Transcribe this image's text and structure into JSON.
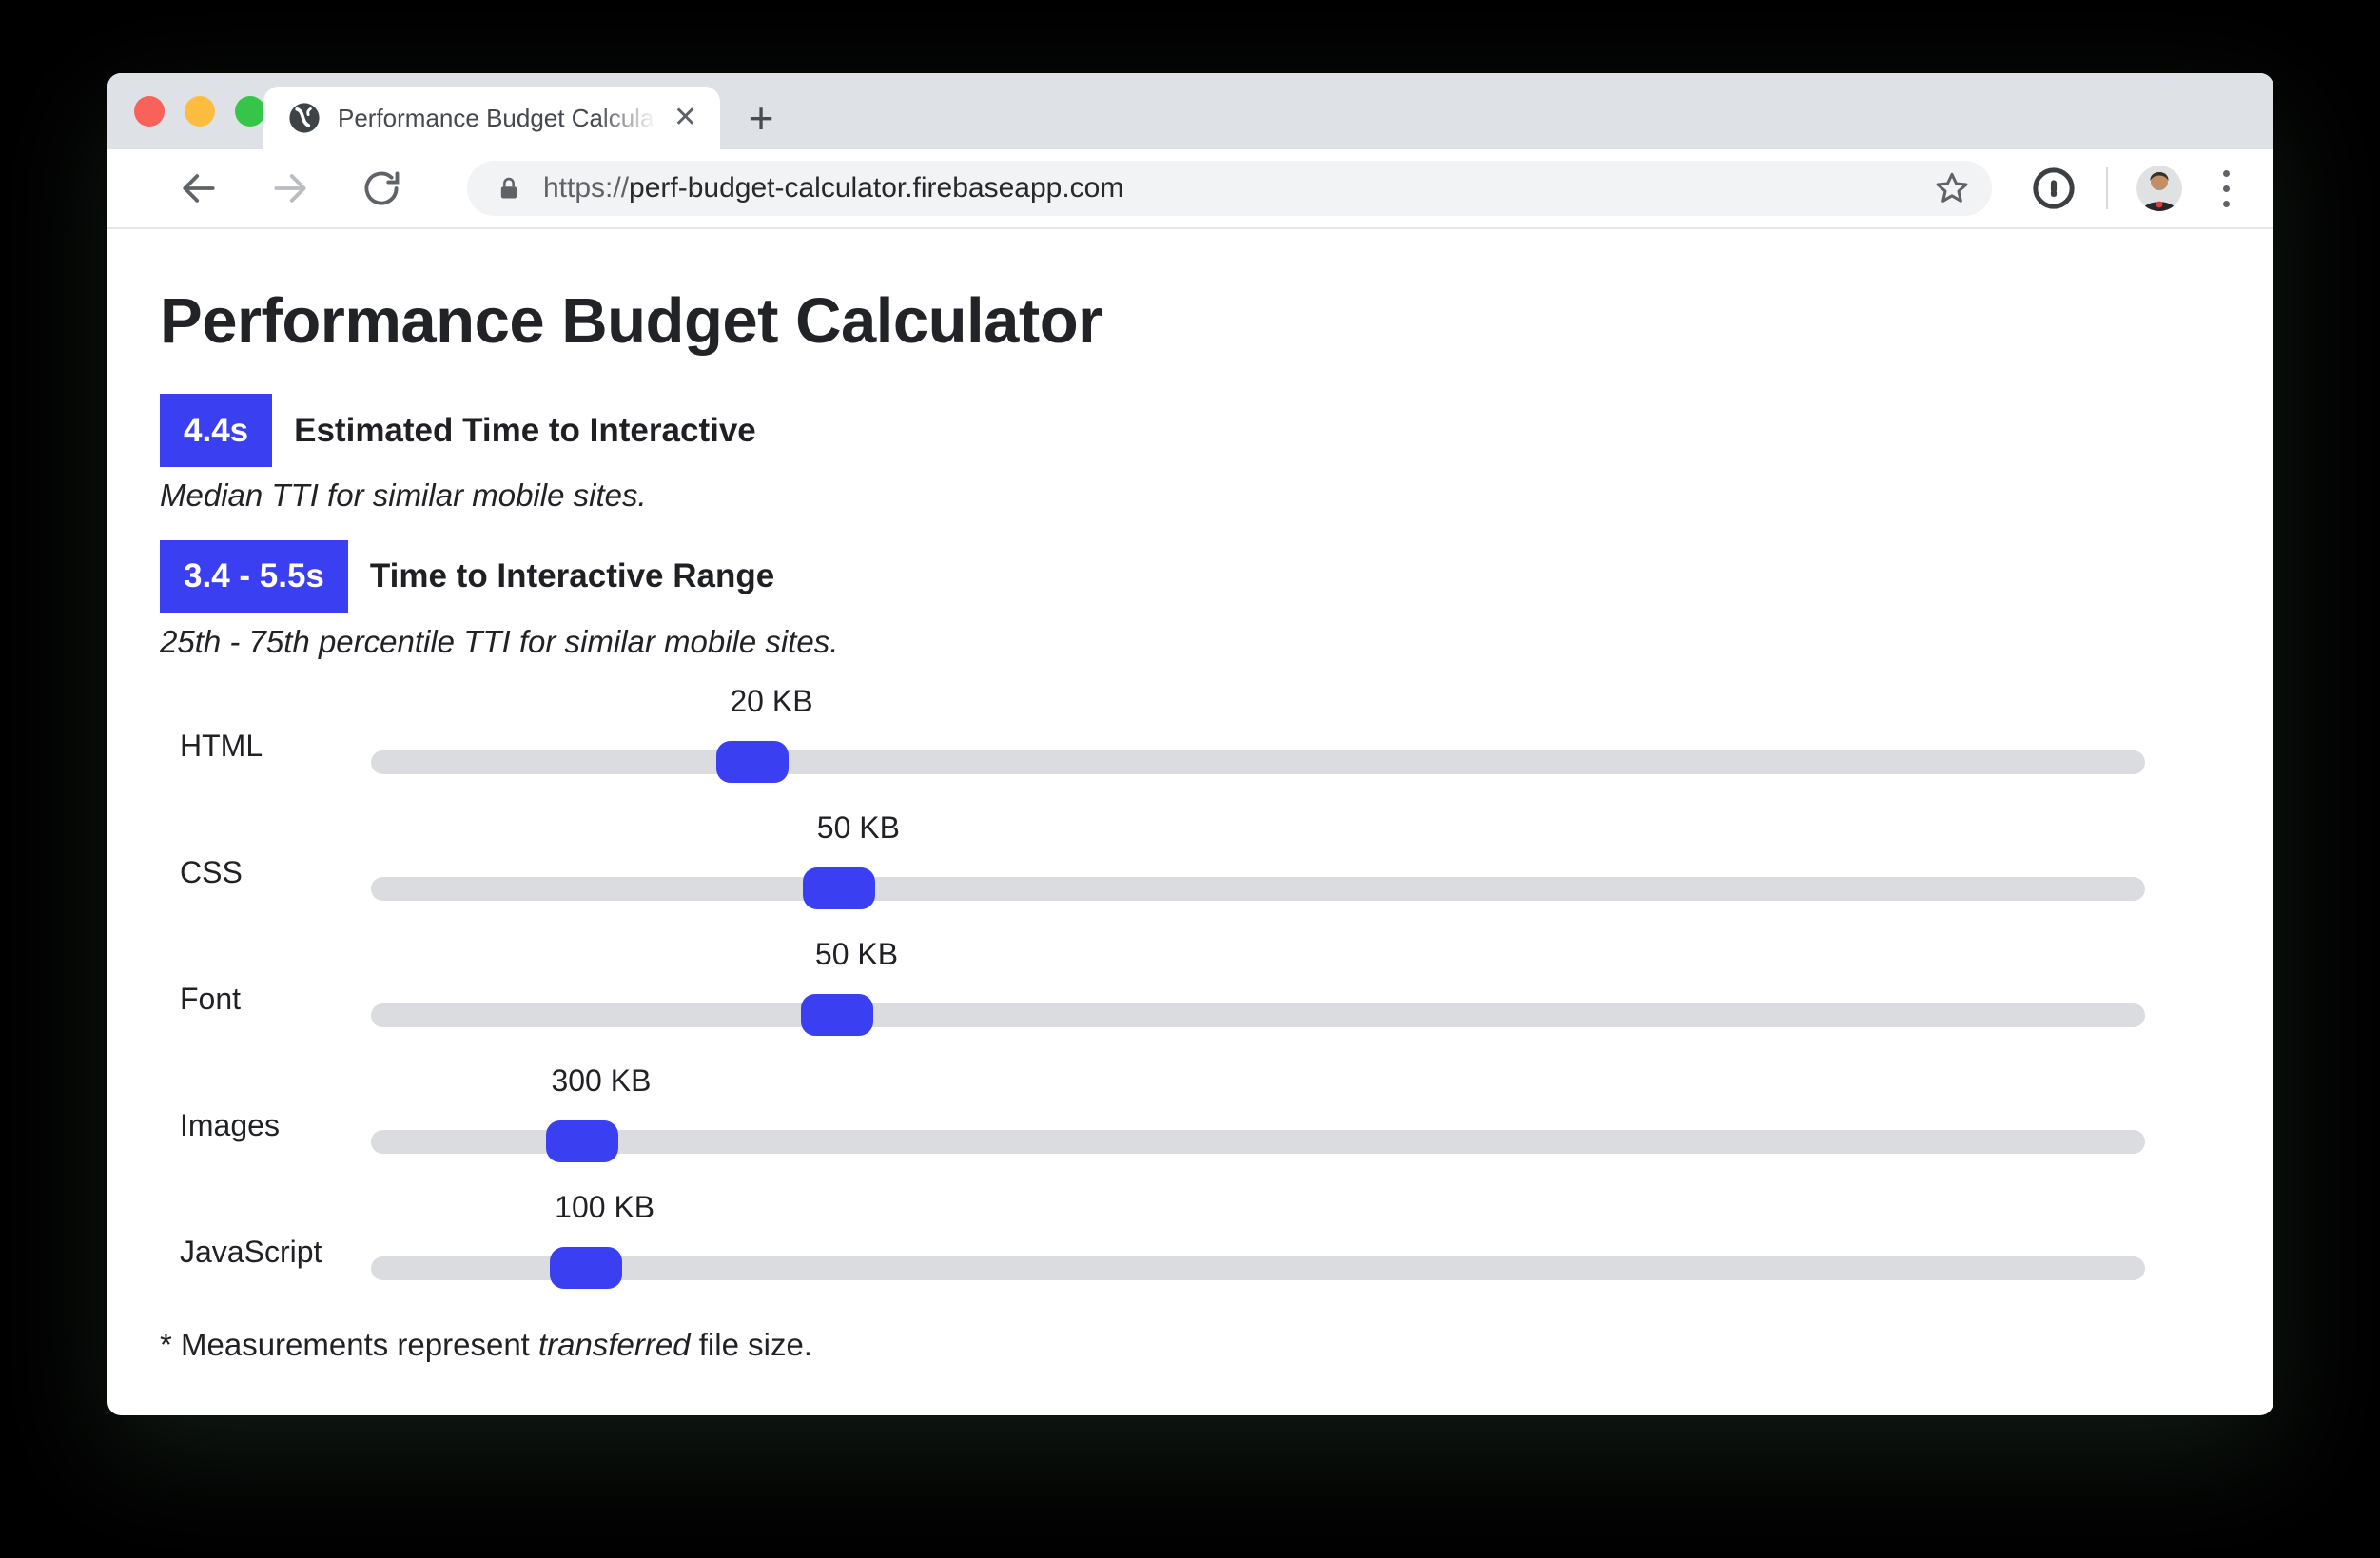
{
  "window": {
    "tab": {
      "title": "Performance Budget Calculator",
      "close_glyph": "✕",
      "new_tab_glyph": "+"
    },
    "toolbar": {
      "url_scheme": "https://",
      "url_host": "perf-budget-calculator.firebaseapp.com"
    }
  },
  "page": {
    "title": "Performance Budget Calculator",
    "metrics": [
      {
        "badge": "4.4s",
        "label": "Estimated Time to Interactive",
        "description": "Median TTI for similar mobile sites."
      },
      {
        "badge": "3.4 - 5.5s",
        "label": "Time to Interactive Range",
        "description": "25th - 75th percentile TTI for similar mobile sites."
      }
    ],
    "sliders": [
      {
        "label": "HTML",
        "value": "20 KB",
        "percent": 21.5
      },
      {
        "label": "CSS",
        "value": "50 KB",
        "percent": 26.4
      },
      {
        "label": "Font",
        "value": "50 KB",
        "percent": 26.3
      },
      {
        "label": "Images",
        "value": "300 KB",
        "percent": 11.9
      },
      {
        "label": "JavaScript",
        "value": "100 KB",
        "percent": 12.1
      }
    ],
    "footnote": {
      "prefix": "* Measurements represent ",
      "italic_word": "transferred",
      "suffix": " file size."
    }
  },
  "colors": {
    "accent_blue": "#3a40f2",
    "slider_track": "#dbdcdf",
    "tabstrip_bg": "#dee1e6"
  }
}
